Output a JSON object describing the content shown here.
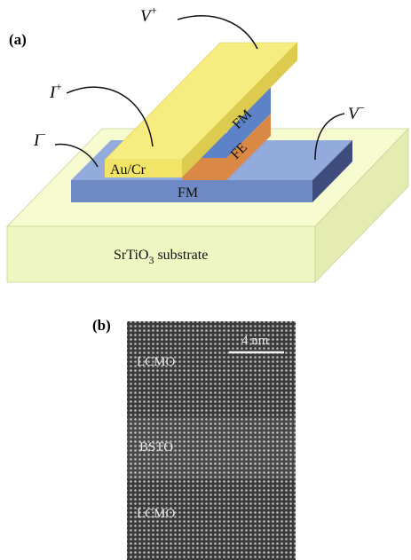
{
  "panel_a": {
    "label": "(a)",
    "v_plus": {
      "base": "V",
      "sup": "+"
    },
    "i_plus": {
      "base": "I",
      "sup": "+"
    },
    "i_minus": {
      "base": "I",
      "sup": "−"
    },
    "v_minus": {
      "base": "V",
      "sup": "−"
    },
    "electrode": "Au/Cr",
    "top_layer": "FM",
    "barrier": "FE",
    "bottom_layer": "FM",
    "substrate": {
      "main": "SrTiO",
      "sub": "3",
      "rest": " substrate"
    }
  },
  "panel_b": {
    "label": "(b)",
    "scale_bar": "4 nm",
    "layers": [
      "LCMO",
      "BSTO",
      "LCMO"
    ]
  }
}
